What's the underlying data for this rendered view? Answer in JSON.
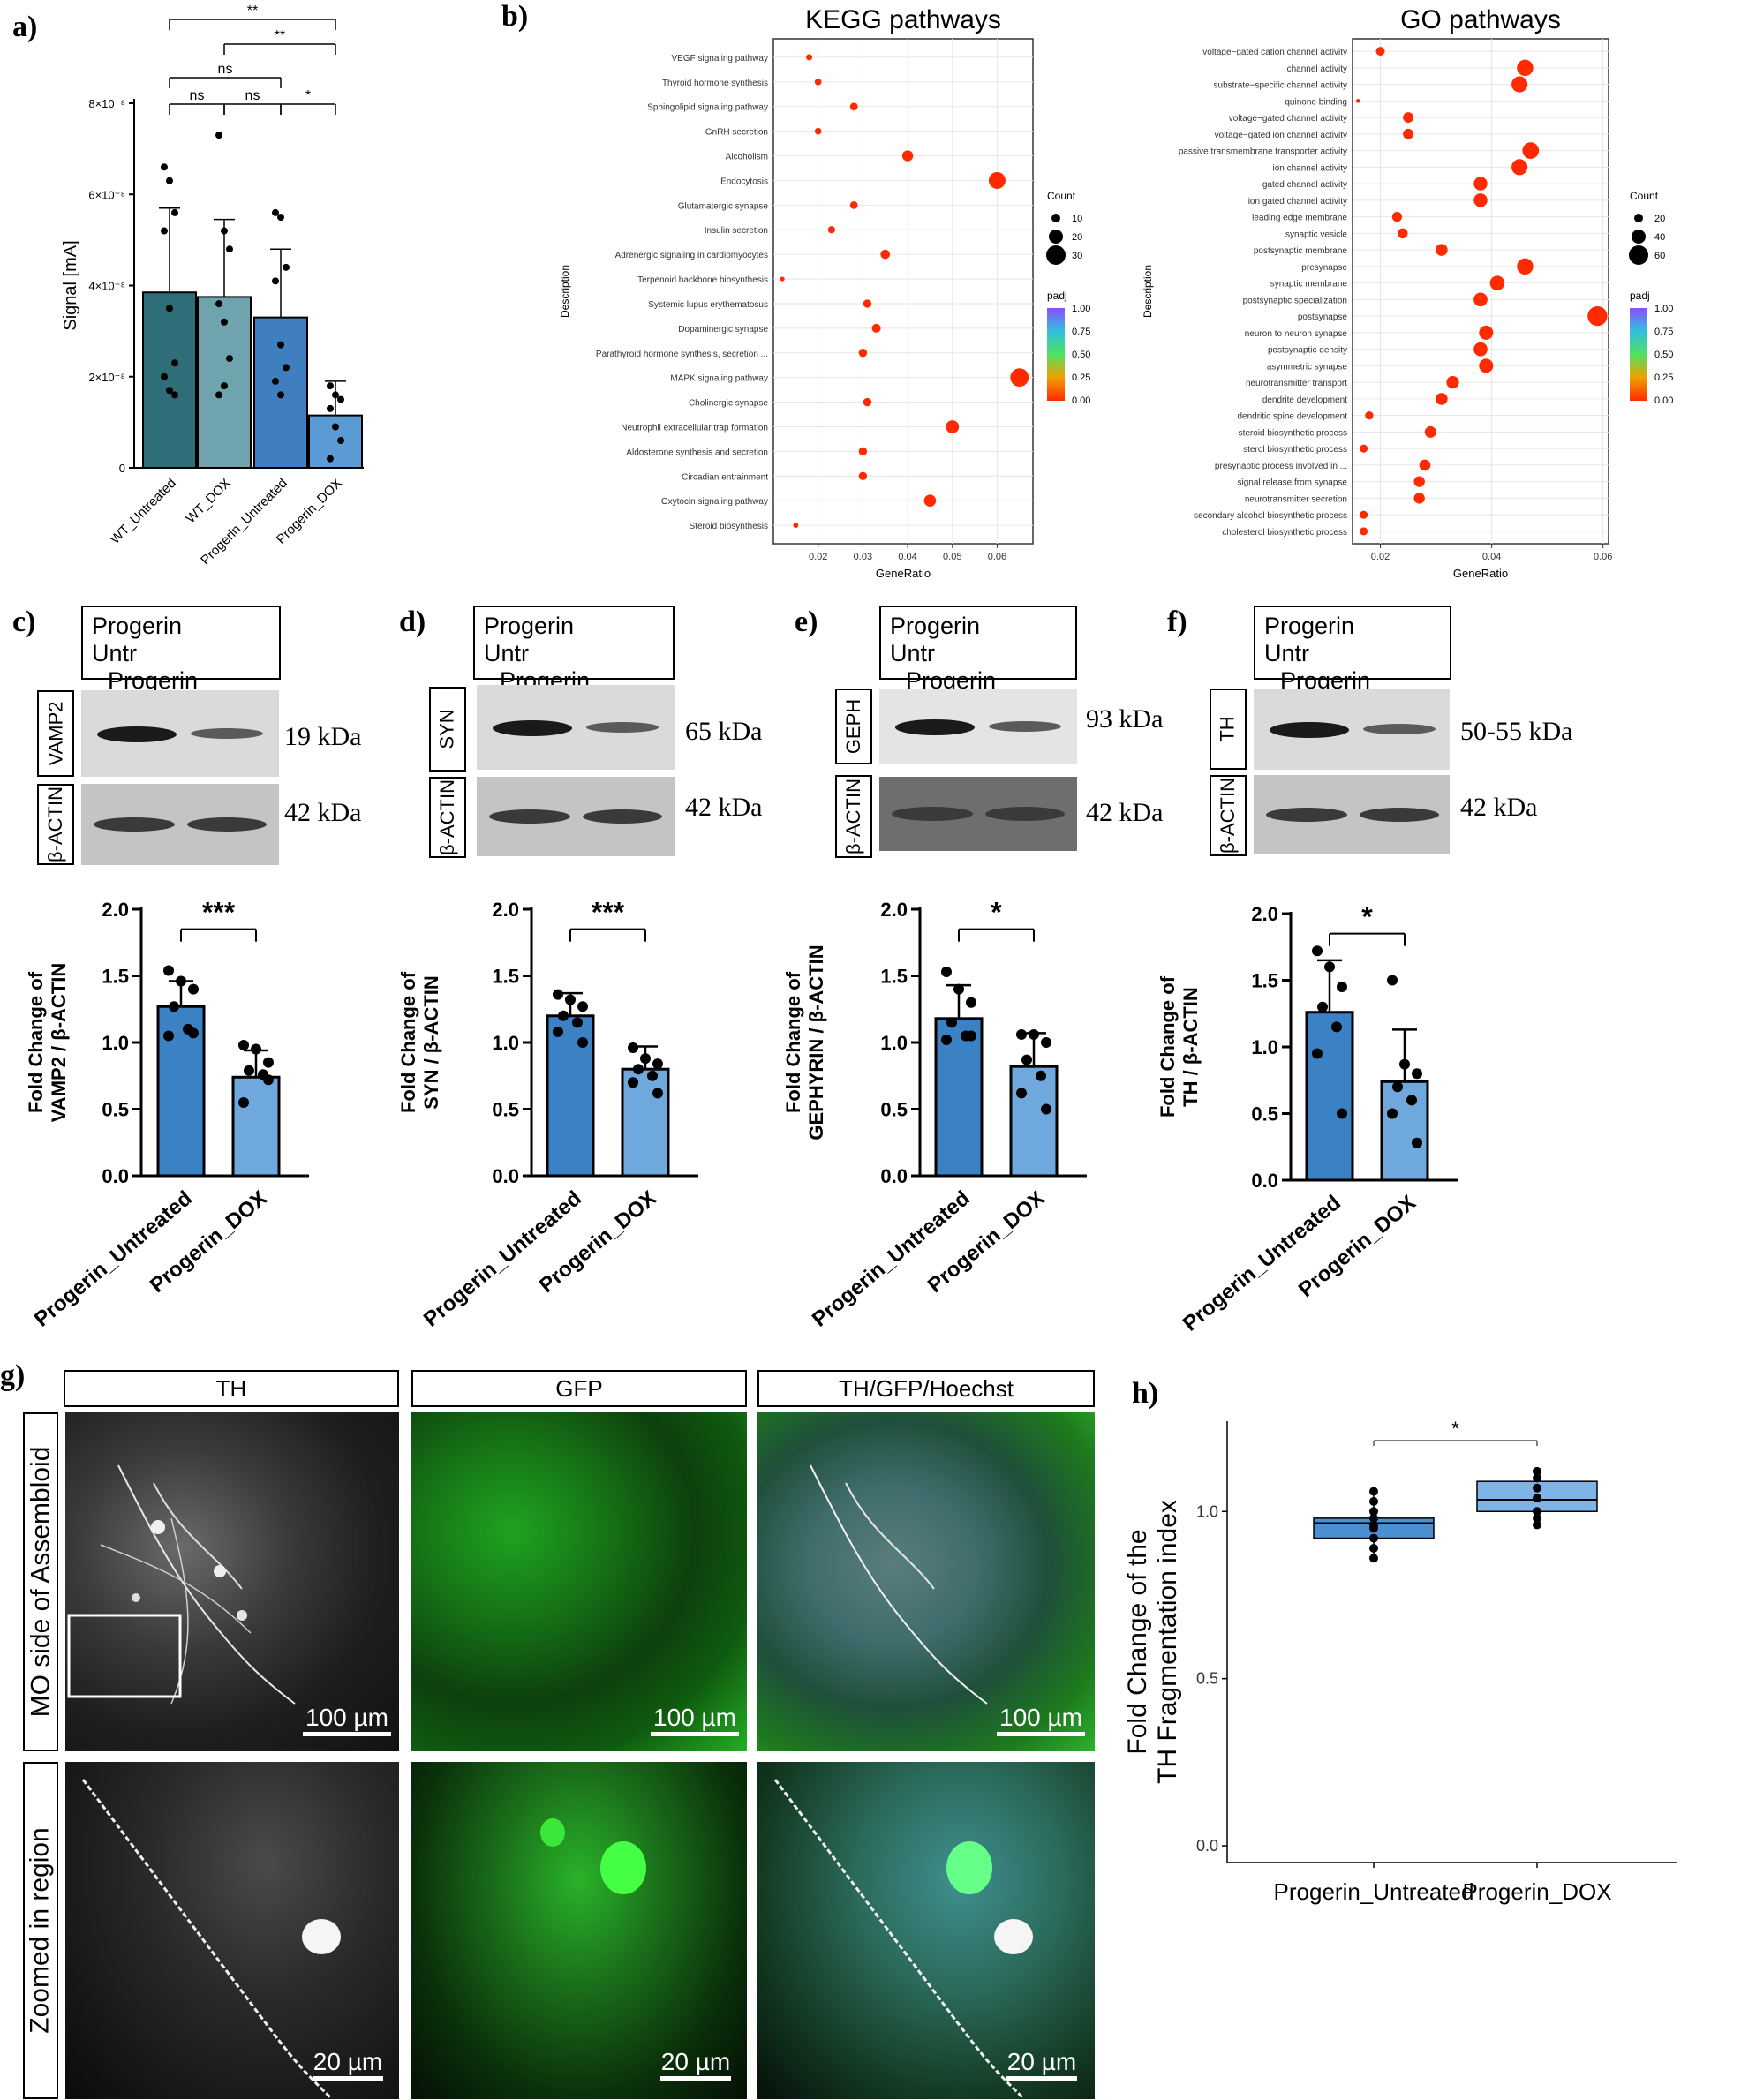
{
  "panels": {
    "a": "a)",
    "b": "b)",
    "c": "c)",
    "d": "d)",
    "e": "e)",
    "f": "f)",
    "g": "g)",
    "h": "h)"
  },
  "colors": {
    "wt_untreated": "#2f6e78",
    "wt_dox": "#6fa3ad",
    "progerin_untreated_a": "#3f7fc0",
    "progerin_dox_a": "#5b9bd5",
    "bar_dark": "#3a82c4",
    "bar_light": "#6fa8dc",
    "box_dark": "#4a8fd0",
    "box_light": "#7eb4e6",
    "dot_red": "#ee2200"
  },
  "blots": {
    "c": {
      "header_left": "Progerin\nUntr",
      "header_right": "Progerin\nDOX",
      "target": "VAMP2",
      "target_kda": "19 kDa",
      "loading": "β-ACTIN",
      "loading_kda": "42 kDa"
    },
    "d": {
      "header_left": "Progerin\nUntr",
      "header_right": "Progerin\nDOX",
      "target": "SYN",
      "target_kda": "65 kDa",
      "loading": "β-ACTIN",
      "loading_kda": "42 kDa"
    },
    "e": {
      "header_left": "Progerin\nUntr",
      "header_right": "Progerin\nDOX",
      "target": "GEPH",
      "target_kda": "93 kDa",
      "loading": "β-ACTIN",
      "loading_kda": "42 kDa"
    },
    "f": {
      "header_left": "Progerin\nUntr",
      "header_right": "Progerin\nDOX",
      "target": "TH",
      "target_kda": "50-55 kDa",
      "loading": "β-ACTIN",
      "loading_kda": "42 kDa"
    }
  },
  "microscopy": {
    "col_headers": [
      "TH",
      "GFP",
      "TH/GFP/Hoechst"
    ],
    "row_labels": [
      "MO side of Assembloid",
      "Zoomed in region"
    ],
    "scale_top": "100 µm",
    "scale_bottom": "20 µm"
  },
  "chart_data": [
    {
      "id": "a",
      "type": "bar",
      "ylabel": "Signal [mA]",
      "categories": [
        "WT_Untreated",
        "WT_DOX",
        "Progerin_Untreated",
        "Progerin_DOX"
      ],
      "values": [
        3.85e-08,
        3.75e-08,
        3.3e-08,
        1.15e-08
      ],
      "errors": [
        1.85e-08,
        1.7e-08,
        1.5e-08,
        7.5e-09
      ],
      "points": [
        [
          6.6e-08,
          6.3e-08,
          5.6e-08,
          5.2e-08,
          3.5e-08,
          2.3e-08,
          2e-08,
          1.7e-08,
          1.6e-08
        ],
        [
          7.3e-08,
          5.2e-08,
          4.8e-08,
          3.6e-08,
          3.2e-08,
          2.4e-08,
          1.6e-08,
          1.8e-08
        ],
        [
          5.6e-08,
          5.5e-08,
          4.4e-08,
          4.1e-08,
          2.7e-08,
          2.2e-08,
          1.9e-08,
          1.6e-08
        ],
        [
          1.8e-08,
          1.6e-08,
          1.5e-08,
          1.3e-08,
          9e-09,
          6e-09,
          2e-09
        ]
      ],
      "yticks": [
        "0",
        "2×10⁻⁸",
        "4×10⁻⁸",
        "6×10⁻⁸",
        "8×10⁻⁸"
      ],
      "ylim": [
        0,
        8e-08
      ],
      "significance": [
        {
          "from": 0,
          "to": 3,
          "label": "**"
        },
        {
          "from": 1,
          "to": 3,
          "label": "**"
        },
        {
          "from": 0,
          "to": 2,
          "label": "ns"
        },
        {
          "from": 0,
          "to": 1,
          "label": "ns"
        },
        {
          "from": 1,
          "to": 2,
          "label": "ns"
        },
        {
          "from": 2,
          "to": 3,
          "label": "*"
        }
      ]
    },
    {
      "id": "b-kegg",
      "type": "scatter",
      "title": "KEGG pathways",
      "xlabel": "GeneRatio",
      "ylabel": "Description",
      "xlim": [
        0.01,
        0.068
      ],
      "xticks": [
        "0.02",
        "0.03",
        "0.04",
        "0.05",
        "0.06"
      ],
      "points": [
        {
          "label": "VEGF signaling pathway",
          "x": 0.018,
          "count": 5,
          "padj": 0.0
        },
        {
          "label": "Thyroid hormone synthesis",
          "x": 0.02,
          "count": 6,
          "padj": 0.0
        },
        {
          "label": "Sphingolipid signaling pathway",
          "x": 0.028,
          "count": 8,
          "padj": 0.0
        },
        {
          "label": "GnRH secretion",
          "x": 0.02,
          "count": 6,
          "padj": 0.0
        },
        {
          "label": "Alcoholism",
          "x": 0.04,
          "count": 14,
          "padj": 0.0
        },
        {
          "label": "Endocytosis",
          "x": 0.06,
          "count": 25,
          "padj": 0.0
        },
        {
          "label": "Glutamatergic synapse",
          "x": 0.028,
          "count": 8,
          "padj": 0.0
        },
        {
          "label": "Insulin secretion",
          "x": 0.023,
          "count": 7,
          "padj": 0.0
        },
        {
          "label": "Adrenergic signaling in cardiomyocytes",
          "x": 0.035,
          "count": 11,
          "padj": 0.0
        },
        {
          "label": "Terpenoid backbone biosynthesis",
          "x": 0.012,
          "count": 2,
          "padj": 0.0
        },
        {
          "label": "Systemic lupus erythematosus",
          "x": 0.031,
          "count": 9,
          "padj": 0.0
        },
        {
          "label": "Dopaminergic synapse",
          "x": 0.033,
          "count": 10,
          "padj": 0.0
        },
        {
          "label": "Parathyroid hormone synthesis, secretion ...",
          "x": 0.03,
          "count": 9,
          "padj": 0.0
        },
        {
          "label": "MAPK signaling pathway",
          "x": 0.065,
          "count": 28,
          "padj": 0.0
        },
        {
          "label": "Cholinergic synapse",
          "x": 0.031,
          "count": 9,
          "padj": 0.0
        },
        {
          "label": "Neutrophil extracellular trap formation",
          "x": 0.05,
          "count": 18,
          "padj": 0.0
        },
        {
          "label": "Aldosterone synthesis and secretion",
          "x": 0.03,
          "count": 9,
          "padj": 0.0
        },
        {
          "label": "Circadian entrainment",
          "x": 0.03,
          "count": 9,
          "padj": 0.0
        },
        {
          "label": "Oxytocin signaling pathway",
          "x": 0.045,
          "count": 16,
          "padj": 0.0
        },
        {
          "label": "Steroid biosynthesis",
          "x": 0.015,
          "count": 3,
          "padj": 0.0
        }
      ],
      "legend": {
        "count_title": "Count",
        "count_values": [
          "10",
          "20",
          "30"
        ],
        "padj_title": "padj",
        "padj_ticks": [
          "1.00",
          "0.75",
          "0.50",
          "0.25",
          "0.00"
        ]
      }
    },
    {
      "id": "b-go",
      "type": "scatter",
      "title": "GO pathways",
      "xlabel": "GeneRatio",
      "ylabel": "Description",
      "xlim": [
        0.015,
        0.061
      ],
      "xticks": [
        "0.02",
        "0.04",
        "0.06"
      ],
      "points": [
        {
          "label": "voltage−gated cation channel activity",
          "x": 0.02,
          "count": 20,
          "padj": 0.0
        },
        {
          "label": "channel activity",
          "x": 0.046,
          "count": 48,
          "padj": 0.0
        },
        {
          "label": "substrate−specific channel activity",
          "x": 0.045,
          "count": 47,
          "padj": 0.0
        },
        {
          "label": "quinone binding",
          "x": 0.016,
          "count": 2,
          "padj": 0.0
        },
        {
          "label": "voltage−gated channel activity",
          "x": 0.025,
          "count": 26,
          "padj": 0.0
        },
        {
          "label": "voltage−gated ion channel activity",
          "x": 0.025,
          "count": 26,
          "padj": 0.0
        },
        {
          "label": "passive transmembrane transporter activity",
          "x": 0.047,
          "count": 49,
          "padj": 0.0
        },
        {
          "label": "ion channel activity",
          "x": 0.045,
          "count": 47,
          "padj": 0.0
        },
        {
          "label": "gated channel activity",
          "x": 0.038,
          "count": 38,
          "padj": 0.0
        },
        {
          "label": "ion gated channel activity",
          "x": 0.038,
          "count": 38,
          "padj": 0.0
        },
        {
          "label": "leading edge membrane",
          "x": 0.023,
          "count": 24,
          "padj": 0.0
        },
        {
          "label": "synaptic vesicle",
          "x": 0.024,
          "count": 25,
          "padj": 0.0
        },
        {
          "label": "postsynaptic membrane",
          "x": 0.031,
          "count": 32,
          "padj": 0.0
        },
        {
          "label": "presynapse",
          "x": 0.046,
          "count": 48,
          "padj": 0.0
        },
        {
          "label": "synaptic membrane",
          "x": 0.041,
          "count": 42,
          "padj": 0.0
        },
        {
          "label": "postsynaptic specialization",
          "x": 0.038,
          "count": 39,
          "padj": 0.0
        },
        {
          "label": "postsynapse",
          "x": 0.059,
          "count": 61,
          "padj": 0.0
        },
        {
          "label": "neuron to neuron synapse",
          "x": 0.039,
          "count": 40,
          "padj": 0.0
        },
        {
          "label": "postsynaptic density",
          "x": 0.038,
          "count": 39,
          "padj": 0.0
        },
        {
          "label": "asymmetric synapse",
          "x": 0.039,
          "count": 40,
          "padj": 0.0
        },
        {
          "label": "neurotransmitter transport",
          "x": 0.033,
          "count": 34,
          "padj": 0.0
        },
        {
          "label": "dendrite development",
          "x": 0.031,
          "count": 32,
          "padj": 0.0
        },
        {
          "label": "dendritic spine development",
          "x": 0.018,
          "count": 18,
          "padj": 0.0
        },
        {
          "label": "steroid biosynthetic process",
          "x": 0.029,
          "count": 30,
          "padj": 0.0
        },
        {
          "label": "sterol biosynthetic process",
          "x": 0.017,
          "count": 17,
          "padj": 0.0
        },
        {
          "label": "presynaptic process involved in ...",
          "x": 0.028,
          "count": 29,
          "padj": 0.0
        },
        {
          "label": "signal release from synapse",
          "x": 0.027,
          "count": 28,
          "padj": 0.0
        },
        {
          "label": "neurotransmitter secretion",
          "x": 0.027,
          "count": 28,
          "padj": 0.0
        },
        {
          "label": "secondary alcohol biosynthetic process",
          "x": 0.017,
          "count": 17,
          "padj": 0.0
        },
        {
          "label": "cholesterol biosynthetic process",
          "x": 0.017,
          "count": 17,
          "padj": 0.0
        }
      ],
      "legend": {
        "count_title": "Count",
        "count_values": [
          "20",
          "40",
          "60"
        ],
        "padj_title": "padj",
        "padj_ticks": [
          "1.00",
          "0.75",
          "0.50",
          "0.25",
          "0.00"
        ]
      }
    },
    {
      "id": "c",
      "type": "bar",
      "ylabel": "Fold Change of\nVAMP2 / β-ACTIN",
      "categories": [
        "Progerin_Untreated",
        "Progerin_DOX"
      ],
      "values": [
        1.27,
        0.74
      ],
      "errors": [
        0.19,
        0.2
      ],
      "points": [
        [
          1.54,
          1.46,
          1.4,
          1.27,
          1.1,
          1.05,
          1.07
        ],
        [
          0.98,
          0.95,
          0.85,
          0.79,
          0.76,
          0.55,
          0.72
        ]
      ],
      "yticks": [
        "0.0",
        "0.5",
        "1.0",
        "1.5",
        "2.0"
      ],
      "ylim": [
        0,
        2
      ],
      "significance": [
        {
          "from": 0,
          "to": 1,
          "label": "***"
        }
      ]
    },
    {
      "id": "d",
      "type": "bar",
      "ylabel": "Fold Change of\nSYN / β-ACTIN",
      "categories": [
        "Progerin_Untreated",
        "Progerin_DOX"
      ],
      "values": [
        1.2,
        0.8
      ],
      "errors": [
        0.17,
        0.17
      ],
      "points": [
        [
          1.36,
          1.32,
          1.27,
          1.2,
          1.15,
          1.08,
          1.0
        ],
        [
          0.96,
          0.88,
          0.84,
          0.8,
          0.75,
          0.7,
          0.62
        ]
      ],
      "yticks": [
        "0.0",
        "0.5",
        "1.0",
        "1.5",
        "2.0"
      ],
      "ylim": [
        0,
        2
      ],
      "significance": [
        {
          "from": 0,
          "to": 1,
          "label": "***"
        }
      ]
    },
    {
      "id": "e",
      "type": "bar",
      "ylabel": "Fold Change of\nGEPHYRIN / β-ACTIN",
      "categories": [
        "Progerin_Untreated",
        "Progerin_DOX"
      ],
      "values": [
        1.18,
        0.82
      ],
      "errors": [
        0.25,
        0.25
      ],
      "points": [
        [
          1.53,
          1.4,
          1.3,
          1.15,
          1.05,
          1.02,
          1.05
        ],
        [
          1.06,
          1.06,
          1.0,
          0.87,
          0.75,
          0.62,
          0.5
        ]
      ],
      "yticks": [
        "0.0",
        "0.5",
        "1.0",
        "1.5",
        "2.0"
      ],
      "ylim": [
        0,
        2
      ],
      "significance": [
        {
          "from": 0,
          "to": 1,
          "label": "*"
        }
      ]
    },
    {
      "id": "f",
      "type": "bar",
      "ylabel": "Fold Change of\nTH / β-ACTIN",
      "categories": [
        "Progerin_Untreated",
        "Progerin_DOX"
      ],
      "values": [
        1.26,
        0.74
      ],
      "errors": [
        0.39,
        0.39
      ],
      "points": [
        [
          1.72,
          1.6,
          1.45,
          1.3,
          1.15,
          0.95,
          0.5
        ],
        [
          1.5,
          0.87,
          0.8,
          0.7,
          0.6,
          0.5,
          0.28
        ]
      ],
      "yticks": [
        "0.0",
        "0.5",
        "1.0",
        "1.5",
        "2.0"
      ],
      "ylim": [
        0,
        2
      ],
      "significance": [
        {
          "from": 0,
          "to": 1,
          "label": "*"
        }
      ]
    },
    {
      "id": "h",
      "type": "box",
      "ylabel": "Fold Change of the\nTH Fragmentation index",
      "categories": [
        "Progerin_Untreated",
        "Progerin_DOX"
      ],
      "boxes": [
        {
          "q1": 0.92,
          "median": 0.965,
          "q3": 0.98,
          "min": 0.86,
          "max": 1.06,
          "points": [
            1.06,
            1.03,
            1.0,
            0.98,
            0.96,
            0.95,
            0.92,
            0.89,
            0.86
          ]
        },
        {
          "q1": 1.0,
          "median": 1.035,
          "q3": 1.09,
          "min": 0.96,
          "max": 1.12,
          "points": [
            1.12,
            1.1,
            1.07,
            1.04,
            1.0,
            0.98,
            0.96
          ]
        }
      ],
      "yticks": [
        "0.0",
        "0.5",
        "1.0"
      ],
      "ylim": [
        -0.05,
        1.27
      ],
      "significance": [
        {
          "from": 0,
          "to": 1,
          "label": "*"
        }
      ]
    }
  ]
}
